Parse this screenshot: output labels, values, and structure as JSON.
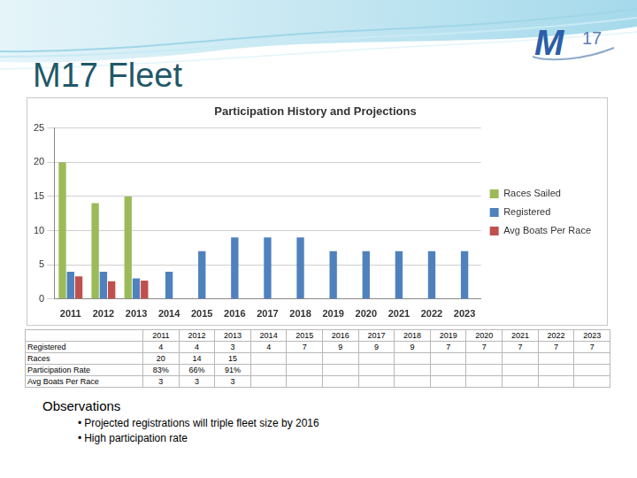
{
  "slide": {
    "title": "M17 Fleet",
    "logo": {
      "letter": "M",
      "number": "17"
    },
    "table": {
      "columns": [
        "2011",
        "2012",
        "2013",
        "2014",
        "2015",
        "2016",
        "2017",
        "2018",
        "2019",
        "2020",
        "2021",
        "2022",
        "2023"
      ],
      "rows": [
        {
          "label": "Registered",
          "cells": [
            "4",
            "4",
            "3",
            "4",
            "7",
            "9",
            "9",
            "9",
            "7",
            "7",
            "7",
            "7",
            "7"
          ]
        },
        {
          "label": "Races",
          "cells": [
            "20",
            "14",
            "15",
            null,
            null,
            null,
            null,
            null,
            null,
            null,
            null,
            null,
            null
          ]
        },
        {
          "label": "Participation Rate",
          "cells": [
            "83%",
            "66%",
            "91%",
            null,
            null,
            null,
            null,
            null,
            null,
            null,
            null,
            null,
            null
          ]
        },
        {
          "label": "Avg Boats Per Race",
          "cells": [
            "3",
            "3",
            "3",
            null,
            null,
            null,
            null,
            null,
            null,
            null,
            null,
            null,
            null
          ]
        }
      ]
    },
    "observations": {
      "heading": "Observations",
      "items": [
        "Projected registrations will triple fleet size by 2016",
        "High participation rate"
      ]
    }
  },
  "chart_data": {
    "type": "bar",
    "title": "Participation History and Projections",
    "categories": [
      "2011",
      "2012",
      "2013",
      "2014",
      "2015",
      "2016",
      "2017",
      "2018",
      "2019",
      "2020",
      "2021",
      "2022",
      "2023"
    ],
    "series": [
      {
        "name": "Races Sailed",
        "color": "#9bbb59",
        "values": [
          20,
          14,
          15,
          null,
          null,
          null,
          null,
          null,
          null,
          null,
          null,
          null,
          null
        ]
      },
      {
        "name": "Registered",
        "color": "#4f81bd",
        "values": [
          4,
          4,
          3,
          4,
          7,
          9,
          9,
          9,
          7,
          7,
          7,
          7,
          7
        ]
      },
      {
        "name": "Avg Boats Per Race",
        "color": "#c0504d",
        "values": [
          3.3,
          2.6,
          2.7,
          null,
          null,
          null,
          null,
          null,
          null,
          null,
          null,
          null,
          null
        ]
      }
    ],
    "ylim": [
      0,
      25
    ],
    "yticks": [
      0,
      5,
      10,
      15,
      20,
      25
    ],
    "grid": true,
    "legend": "right"
  }
}
